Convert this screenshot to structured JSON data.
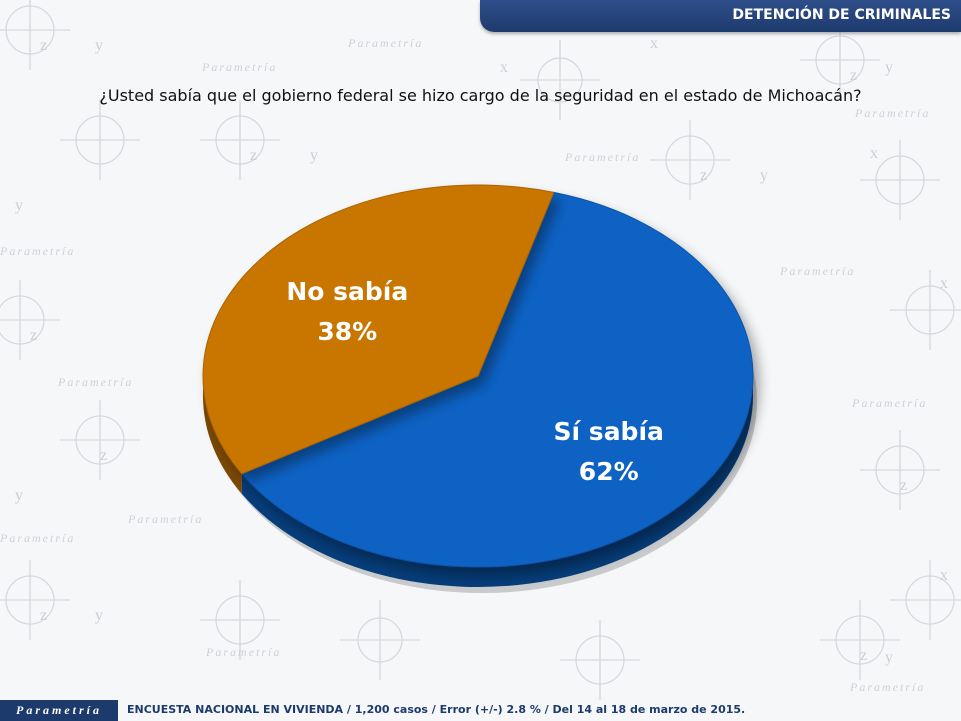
{
  "header": {
    "title": "DETENCIÓN DE CRIMINALES"
  },
  "question": "¿Usted sabía que el gobierno federal se hizo cargo de la seguridad en el estado de Michoacán?",
  "background": {
    "watermark_text": "Parametría"
  },
  "chart_data": {
    "type": "pie",
    "title": "",
    "slices": [
      {
        "label": "Sí sabía",
        "value": 62,
        "value_label": "62%",
        "color": "#0a62c4"
      },
      {
        "label": "No sabía",
        "value": 38,
        "value_label": "38%",
        "color": "#c87605"
      }
    ]
  },
  "footer": {
    "logo_text": "Parametría",
    "note": "ENCUESTA NACIONAL EN VIVIENDA / 1,200 casos / Error (+/-) 2.8 % / Del 14 al 18 de marzo de 2015."
  }
}
